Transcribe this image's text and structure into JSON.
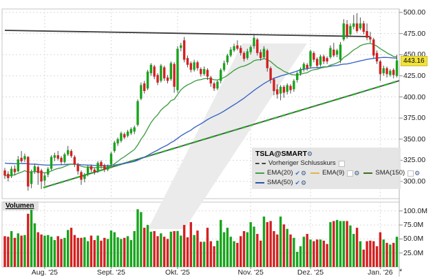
{
  "legend": {
    "title": "TSLA@SMART",
    "gear_icon": "gear",
    "prev_close": {
      "label": "Vorheriger Schlusskurs",
      "checked": false,
      "color": "#444444",
      "style": "dashed"
    },
    "indicators": [
      {
        "label": "EMA(20)",
        "color": "#43a047",
        "checked": true
      },
      {
        "label": "EMA(9)",
        "color": "#dfb44f",
        "checked": false
      },
      {
        "label": "SMA(150)",
        "color": "#39701f",
        "checked": false
      },
      {
        "label": "SMA(50)",
        "color": "#2b52a8",
        "checked": true
      }
    ]
  },
  "volume_pane": {
    "label": "Volumen"
  },
  "price_axis": {
    "tick_labels": [
      "500.00",
      "475.00",
      "450.00",
      "425.00",
      "400.00",
      "375.00",
      "350.00",
      "325.00",
      "300.00"
    ],
    "tick_values": [
      500,
      475,
      450,
      425,
      400,
      375,
      350,
      325,
      300
    ],
    "last_price": 443.16,
    "last_price_label": "443.16",
    "badge_color": "#f2e33c"
  },
  "volume_axis": {
    "tick_labels": [
      "100.0M",
      "75.0M",
      "50.0M",
      "25.0M"
    ],
    "tick_values": [
      100,
      75,
      50,
      25
    ]
  },
  "x_axis": {
    "labels": [
      "Aug. '25",
      "Sept. '25",
      "Okt. '25",
      "Nov. '25",
      "Dez. '25",
      "Jan. '26"
    ],
    "month_day_index": [
      12,
      32,
      52,
      74,
      92,
      113
    ],
    "overflow_marker": "*"
  },
  "chart_data": {
    "type": "candlestick",
    "symbol": "TSLA@SMART",
    "price_range": [
      300,
      500
    ],
    "volume_range_millions": [
      0,
      100
    ],
    "up_color": "#18a41c",
    "down_color": "#d32020",
    "ema20_color": "#43a047",
    "sma50_color": "#3b66c4",
    "ema_period": 20,
    "sma_period": 50,
    "trendlines": [
      {
        "name": "resistance",
        "style": "solid",
        "color": "#3a3a3a",
        "d1": 0,
        "p1": 478.8,
        "d2": 109.8,
        "p2": 471.4
      },
      {
        "name": "support",
        "style": "dashed",
        "color": "#2fae2f",
        "d1": 11.6,
        "p1": 292.7,
        "d2": 118.7,
        "p2": 419.2
      }
    ],
    "candles_format": [
      "open",
      "high",
      "low",
      "close",
      "volume_millions"
    ],
    "candles": [
      [
        313,
        316,
        303,
        307,
        55
      ],
      [
        309,
        312,
        300,
        304,
        54
      ],
      [
        306,
        318,
        304,
        315,
        64
      ],
      [
        315,
        319,
        307,
        311,
        52
      ],
      [
        312,
        330,
        311,
        326,
        60
      ],
      [
        328,
        336,
        322,
        324,
        56
      ],
      [
        326,
        333,
        323,
        330,
        57
      ],
      [
        329,
        330,
        289,
        294,
        95
      ],
      [
        297,
        314,
        292,
        312,
        102
      ],
      [
        312,
        321,
        309,
        318,
        78
      ],
      [
        317,
        319,
        296,
        310,
        62
      ],
      [
        313,
        315,
        291,
        300,
        58
      ],
      [
        301,
        310,
        295,
        307,
        56
      ],
      [
        308,
        317,
        305,
        315,
        57
      ],
      [
        315,
        331,
        313,
        329,
        54
      ],
      [
        328,
        334,
        324,
        331,
        48
      ],
      [
        331,
        336,
        325,
        327,
        55
      ],
      [
        328,
        330,
        320,
        323,
        50
      ],
      [
        323,
        334,
        321,
        332,
        52
      ],
      [
        332,
        342,
        330,
        337,
        66
      ],
      [
        336,
        338,
        328,
        330,
        70
      ],
      [
        329,
        331,
        317,
        320,
        57
      ],
      [
        320,
        322,
        308,
        312,
        52
      ],
      [
        311,
        313,
        296,
        302,
        52
      ],
      [
        303,
        310,
        299,
        308,
        53
      ],
      [
        308,
        319,
        306,
        317,
        46
      ],
      [
        318,
        320,
        311,
        314,
        56
      ],
      [
        314,
        316,
        308,
        311,
        48
      ],
      [
        312,
        324,
        310,
        322,
        56
      ],
      [
        323,
        325,
        315,
        318,
        47
      ],
      [
        319,
        321,
        311,
        314,
        52
      ],
      [
        314,
        320,
        312,
        318,
        50
      ],
      [
        320,
        335,
        318,
        333,
        65
      ],
      [
        336,
        348,
        334,
        346,
        62
      ],
      [
        345,
        352,
        342,
        350,
        53
      ],
      [
        348,
        359,
        346,
        357,
        50
      ],
      [
        356,
        358,
        350,
        352,
        52
      ],
      [
        354,
        361,
        352,
        359,
        55
      ],
      [
        357,
        364,
        355,
        362,
        48
      ],
      [
        359,
        366,
        356,
        364,
        64
      ],
      [
        367,
        397,
        365,
        395,
        103
      ],
      [
        398,
        417,
        396,
        414,
        98
      ],
      [
        416,
        419,
        404,
        407,
        70
      ],
      [
        410,
        432,
        408,
        430,
        75
      ],
      [
        428,
        440,
        425,
        438,
        63
      ],
      [
        436,
        438,
        421,
        424,
        64
      ],
      [
        426,
        428,
        414,
        417,
        55
      ],
      [
        419,
        439,
        417,
        437,
        60
      ],
      [
        435,
        437,
        419,
        422,
        54
      ],
      [
        423,
        426,
        416,
        419,
        50
      ],
      [
        421,
        442,
        419,
        440,
        63
      ],
      [
        439,
        441,
        405,
        412,
        64
      ],
      [
        408,
        460,
        405,
        457,
        64
      ],
      [
        458,
        464,
        454,
        461,
        56
      ],
      [
        467,
        471,
        441,
        444,
        75
      ],
      [
        446,
        449,
        435,
        438,
        53
      ],
      [
        440,
        442,
        429,
        432,
        80
      ],
      [
        432,
        444,
        430,
        441,
        57
      ],
      [
        441,
        443,
        431,
        434,
        65
      ],
      [
        433,
        435,
        424,
        427,
        45
      ],
      [
        427,
        436,
        425,
        433,
        45
      ],
      [
        432,
        434,
        420,
        424,
        70
      ],
      [
        423,
        425,
        412,
        416,
        46
      ],
      [
        416,
        418,
        407,
        410,
        37
      ],
      [
        410,
        420,
        408,
        418,
        47
      ],
      [
        419,
        434,
        416,
        432,
        84
      ],
      [
        432,
        443,
        430,
        440,
        62
      ],
      [
        441,
        451,
        438,
        449,
        70
      ],
      [
        449,
        459,
        447,
        456,
        54
      ],
      [
        455,
        463,
        453,
        460,
        46
      ],
      [
        461,
        467,
        455,
        457,
        43
      ],
      [
        458,
        461,
        449,
        452,
        55
      ],
      [
        452,
        454,
        442,
        445,
        64
      ],
      [
        446,
        457,
        444,
        454,
        62
      ],
      [
        453,
        461,
        450,
        459,
        80
      ],
      [
        460,
        473,
        457,
        470,
        72
      ],
      [
        468,
        470,
        449,
        452,
        59
      ],
      [
        453,
        456,
        443,
        446,
        47
      ],
      [
        447,
        460,
        445,
        457,
        90
      ],
      [
        455,
        457,
        430,
        434,
        80
      ],
      [
        434,
        436,
        416,
        420,
        82
      ],
      [
        421,
        423,
        402,
        407,
        64
      ],
      [
        409,
        415,
        398,
        403,
        58
      ],
      [
        404,
        414,
        396,
        412,
        90
      ],
      [
        412,
        414,
        399,
        405,
        76
      ],
      [
        406,
        416,
        403,
        414,
        68
      ],
      [
        413,
        415,
        404,
        408,
        58
      ],
      [
        409,
        421,
        406,
        419,
        52
      ],
      [
        420,
        430,
        417,
        428,
        27
      ],
      [
        428,
        435,
        425,
        433,
        37
      ],
      [
        433,
        441,
        430,
        439,
        54
      ],
      [
        438,
        440,
        431,
        434,
        59
      ],
      [
        436,
        456,
        434,
        454,
        49
      ],
      [
        452,
        454,
        441,
        444,
        46
      ],
      [
        445,
        447,
        434,
        437,
        49
      ],
      [
        438,
        450,
        436,
        448,
        49
      ],
      [
        448,
        450,
        439,
        442,
        47
      ],
      [
        446,
        448,
        439,
        442,
        41
      ],
      [
        447,
        461,
        445,
        458,
        80
      ],
      [
        456,
        464,
        447,
        449,
        82
      ],
      [
        450,
        457,
        447,
        455,
        84
      ],
      [
        444,
        465,
        440,
        462,
        82
      ],
      [
        468,
        492,
        466,
        487,
        82
      ],
      [
        486,
        491,
        469,
        472,
        82
      ],
      [
        474,
        487,
        471,
        484,
        74
      ],
      [
        483,
        497,
        480,
        487,
        59
      ],
      [
        487,
        499,
        476,
        478,
        70
      ],
      [
        481,
        494,
        479,
        487,
        46
      ],
      [
        487,
        490,
        474,
        477,
        31
      ],
      [
        478,
        487,
        467,
        470,
        46
      ],
      [
        471,
        477,
        464,
        468,
        47
      ],
      [
        468,
        470,
        446,
        449,
        46
      ],
      [
        452,
        455,
        439,
        442,
        37
      ],
      [
        442,
        444,
        419,
        427,
        62
      ],
      [
        428,
        437,
        425,
        434,
        49
      ],
      [
        434,
        436,
        423,
        427,
        43
      ],
      [
        426,
        433,
        424,
        431,
        40
      ],
      [
        432,
        434,
        422,
        426,
        43
      ],
      [
        425,
        450,
        423,
        443.16,
        54
      ]
    ]
  }
}
